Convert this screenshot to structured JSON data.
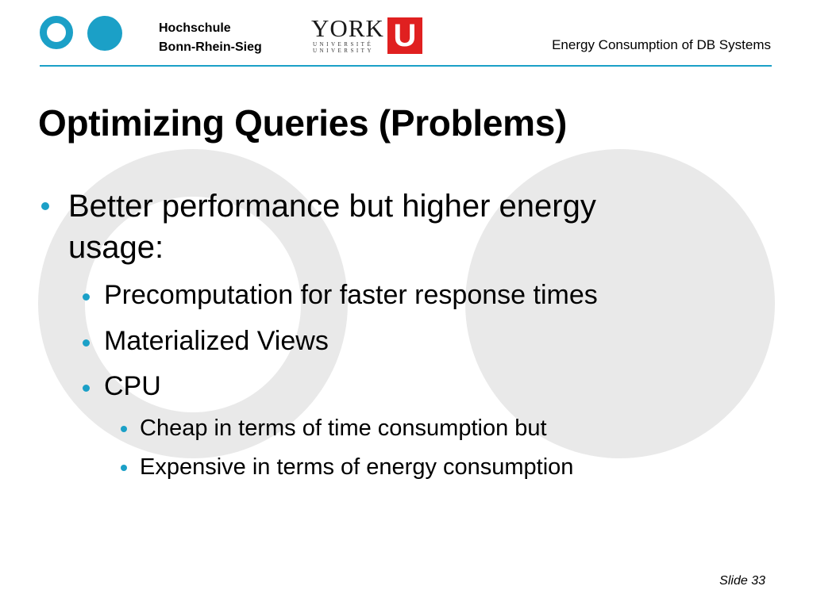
{
  "header": {
    "institution_line1": "Hochschule",
    "institution_line2": "Bonn-Rhein-Sieg",
    "york_word": "YORK",
    "york_sub1": "UNIVERSITÉ",
    "york_sub2": "UNIVERSITY",
    "york_u": "U",
    "presentation_title": "Energy Consumption of DB Systems"
  },
  "slide": {
    "title": "Optimizing Queries (Problems)",
    "bullets": {
      "b1_line1": "Better performance but higher energy",
      "b1_line2": "usage:",
      "b2": "Precomputation for faster response times",
      "b3": "Materialized Views",
      "b4": "CPU",
      "b5": "Cheap in terms of time consumption but",
      "b6": "Expensive in terms of energy consumption"
    }
  },
  "footer": {
    "slide_number": "Slide 33"
  },
  "colors": {
    "accent": "#1ba0c7",
    "york_red": "#e02020",
    "bg_circle": "#e9e9e9"
  }
}
